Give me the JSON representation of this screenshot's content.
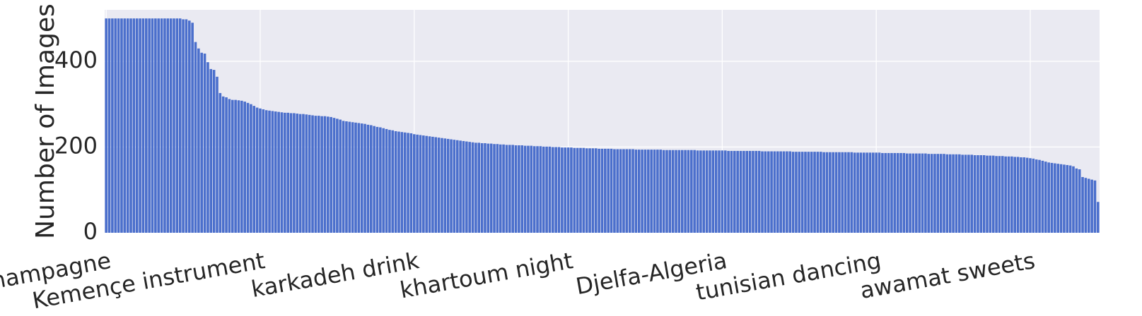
{
  "chart_data": {
    "type": "bar",
    "ylabel": "Number of Images",
    "xlabel": "",
    "ylim": [
      0,
      520
    ],
    "yticks": [
      "0",
      "200",
      "400"
    ],
    "grid": true,
    "bar_color": "#4b6fcc",
    "plot_background": "#eaeaf2",
    "grid_color": "#ffffff",
    "xtick_labels": [
      "saudi champagne",
      "Kemençe instrument",
      "karkadeh drink",
      "khartoum night",
      "Djelfa-Algeria",
      "tunisian dancing",
      "awamat sweets"
    ],
    "xtick_index": [
      0,
      50,
      100,
      150,
      200,
      250,
      300
    ],
    "values": [
      500,
      500,
      500,
      500,
      500,
      500,
      500,
      500,
      500,
      500,
      500,
      500,
      500,
      500,
      500,
      500,
      500,
      500,
      500,
      500,
      500,
      500,
      500,
      500,
      500,
      498,
      498,
      495,
      490,
      445,
      430,
      420,
      418,
      398,
      382,
      380,
      364,
      326,
      318,
      316,
      312,
      310,
      310,
      309,
      308,
      306,
      303,
      300,
      296,
      292,
      290,
      288,
      286,
      285,
      284,
      283,
      282,
      281,
      280,
      280,
      279,
      279,
      278,
      277,
      277,
      276,
      275,
      274,
      273,
      273,
      272,
      272,
      271,
      270,
      268,
      266,
      264,
      261,
      260,
      259,
      258,
      257,
      256,
      255,
      254,
      252,
      251,
      249,
      247,
      246,
      244,
      242,
      240,
      239,
      237,
      236,
      235,
      234,
      233,
      232,
      230,
      229,
      228,
      227,
      226,
      225,
      224,
      223,
      222,
      221,
      220,
      219,
      218,
      217,
      216,
      215,
      214,
      213,
      212,
      211,
      210,
      210,
      209,
      209,
      208,
      208,
      207,
      207,
      206,
      206,
      205,
      205,
      205,
      204,
      204,
      204,
      203,
      203,
      203,
      202,
      202,
      202,
      201,
      201,
      201,
      200,
      200,
      200,
      199,
      199,
      199,
      199,
      198,
      198,
      198,
      198,
      197,
      197,
      197,
      197,
      196,
      196,
      196,
      196,
      196,
      195,
      195,
      195,
      195,
      195,
      195,
      195,
      194,
      194,
      194,
      194,
      194,
      194,
      194,
      194,
      194,
      193,
      193,
      193,
      193,
      193,
      193,
      193,
      193,
      193,
      193,
      193,
      192,
      192,
      192,
      192,
      192,
      192,
      192,
      192,
      192,
      192,
      191,
      191,
      191,
      191,
      191,
      191,
      191,
      191,
      191,
      191,
      191,
      190,
      190,
      190,
      190,
      190,
      190,
      190,
      190,
      190,
      190,
      189,
      189,
      189,
      189,
      189,
      189,
      189,
      189,
      189,
      189,
      188,
      188,
      188,
      188,
      188,
      188,
      188,
      188,
      188,
      188,
      187,
      187,
      187,
      187,
      187,
      187,
      187,
      187,
      187,
      186,
      186,
      186,
      186,
      186,
      186,
      186,
      186,
      185,
      185,
      185,
      185,
      185,
      185,
      185,
      184,
      184,
      184,
      184,
      184,
      184,
      183,
      183,
      183,
      183,
      183,
      182,
      182,
      182,
      182,
      181,
      181,
      181,
      181,
      180,
      180,
      180,
      179,
      179,
      179,
      178,
      178,
      178,
      177,
      177,
      176,
      176,
      175,
      174,
      173,
      171,
      170,
      168,
      166,
      164,
      163,
      162,
      161,
      160,
      159,
      158,
      157,
      155,
      150,
      148,
      130,
      128,
      126,
      124,
      122,
      72
    ]
  }
}
